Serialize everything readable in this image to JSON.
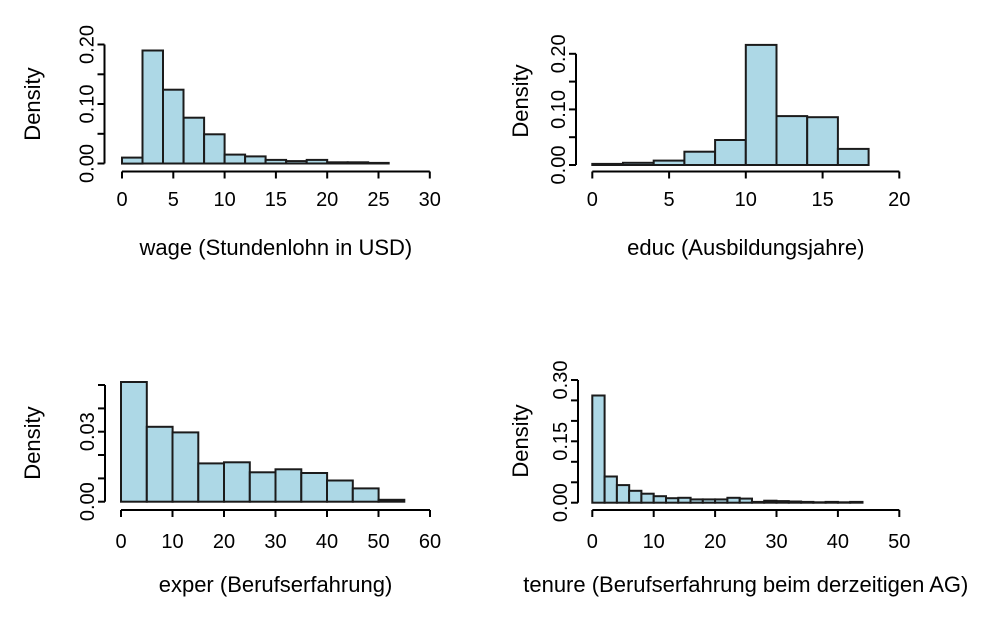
{
  "style": {
    "background": "#FFFFFF",
    "bar_fill": "#ADD8E6",
    "bar_stroke": "#1B1B1B",
    "axis_color": "#000000",
    "text_color": "#000000"
  },
  "chart_data": [
    {
      "type": "bar",
      "subtype": "histogram",
      "xlabel": "wage (Stundenlohn in USD)",
      "ylabel": "Density",
      "bin_start": 0,
      "bin_width": 2,
      "densities": [
        0.01,
        0.19,
        0.124,
        0.077,
        0.049,
        0.015,
        0.012,
        0.006,
        0.004,
        0.006,
        0.002,
        0.002,
        0.001
      ],
      "x_ticks": [
        0,
        5,
        10,
        15,
        20,
        25,
        30
      ],
      "x_tick_labels": [
        "0",
        "5",
        "10",
        "15",
        "20",
        "25",
        "30"
      ],
      "y_ticks": [
        0,
        0.05,
        0.1,
        0.15,
        0.2
      ],
      "y_tick_labels": [
        "0.00",
        "",
        "0.10",
        "",
        "0.20"
      ],
      "xlim": [
        0,
        30
      ],
      "ylim": [
        0,
        0.2
      ],
      "grid": false,
      "legend": "none"
    },
    {
      "type": "bar",
      "subtype": "histogram",
      "xlabel": "educ (Ausbildungsjahre)",
      "ylabel": "Density",
      "bin_start": 0,
      "bin_width": 2,
      "densities": [
        0.002,
        0.004,
        0.008,
        0.024,
        0.045,
        0.216,
        0.088,
        0.086,
        0.029
      ],
      "x_ticks": [
        0,
        5,
        10,
        15,
        20
      ],
      "x_tick_labels": [
        "0",
        "5",
        "10",
        "15",
        "20"
      ],
      "y_ticks": [
        0,
        0.05,
        0.1,
        0.15,
        0.2
      ],
      "y_tick_labels": [
        "0.00",
        "",
        "0.10",
        "",
        "0.20"
      ],
      "xlim": [
        0,
        20
      ],
      "ylim": [
        0,
        0.216
      ],
      "grid": false,
      "legend": "none"
    },
    {
      "type": "bar",
      "subtype": "histogram",
      "xlabel": "exper (Berufserfahrung)",
      "ylabel": "Density",
      "bin_start": 0,
      "bin_width": 5,
      "densities": [
        0.0513,
        0.0321,
        0.0297,
        0.0164,
        0.0169,
        0.0126,
        0.0139,
        0.0123,
        0.0091,
        0.0057,
        0.0008
      ],
      "x_ticks": [
        0,
        10,
        20,
        30,
        40,
        50,
        60
      ],
      "x_tick_labels": [
        "0",
        "10",
        "20",
        "30",
        "40",
        "50",
        "60"
      ],
      "y_ticks": [
        0,
        0.01,
        0.02,
        0.03,
        0.04,
        0.05
      ],
      "y_tick_labels": [
        "0.00",
        "",
        "",
        "0.03",
        "",
        ""
      ],
      "xlim": [
        0,
        60
      ],
      "ylim": [
        0,
        0.0513
      ],
      "grid": false,
      "legend": "none"
    },
    {
      "type": "bar",
      "subtype": "histogram",
      "xlabel": "tenure (Berufserfahrung beim derzeitigen AG)",
      "ylabel": "Density",
      "bin_start": 0,
      "bin_width": 2,
      "densities": [
        0.262,
        0.064,
        0.043,
        0.029,
        0.022,
        0.016,
        0.011,
        0.012,
        0.008,
        0.008,
        0.008,
        0.012,
        0.01,
        0.002,
        0.005,
        0.004,
        0.003,
        0.002,
        0.001,
        0.002,
        0.001,
        0.002
      ],
      "x_ticks": [
        0,
        10,
        20,
        30,
        40,
        50
      ],
      "x_tick_labels": [
        "0",
        "10",
        "20",
        "30",
        "40",
        "50"
      ],
      "y_ticks": [
        0,
        0.05,
        0.1,
        0.15,
        0.2,
        0.25,
        0.3
      ],
      "y_tick_labels": [
        "0.00",
        "",
        "",
        "0.15",
        "",
        "",
        "0.30"
      ],
      "xlim": [
        0,
        50
      ],
      "ylim": [
        0,
        0.3
      ],
      "grid": false,
      "legend": "none"
    }
  ]
}
